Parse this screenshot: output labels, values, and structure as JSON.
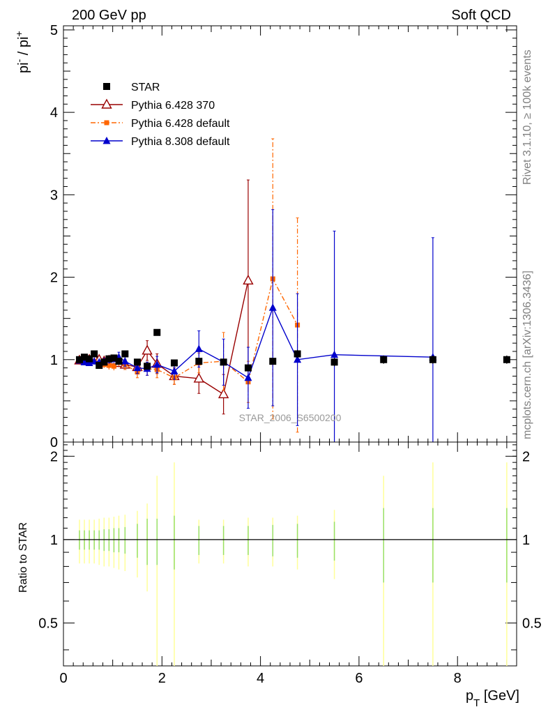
{
  "header": {
    "left": "200 GeV pp",
    "right": "Soft QCD"
  },
  "side_text": {
    "rivet": "Rivet 3.1.10, ≥ 100k events",
    "mcplots": "mcplots.cern.ch [arXiv:1306.3436]"
  },
  "watermark": "STAR_2006_S6500200",
  "chart_data": [
    {
      "type": "scatter",
      "panel": "main",
      "ylabel": "pi⁻ / pi⁺",
      "xlim": [
        0,
        9.2
      ],
      "ylim": [
        0,
        5.05
      ],
      "x_ticks": [
        0,
        2,
        4,
        6,
        8
      ],
      "y_ticks": [
        0,
        1,
        2,
        3,
        4,
        5
      ],
      "y_tick_labels": [
        "0",
        "1",
        "2",
        "3",
        "4",
        "5"
      ],
      "legend_position": "top-left",
      "series": [
        {
          "name": "STAR",
          "color": "#000000",
          "marker": "square",
          "line": "none",
          "x": [
            0.325,
            0.425,
            0.525,
            0.625,
            0.725,
            0.825,
            0.925,
            1.025,
            1.125,
            1.25,
            1.5,
            1.7,
            1.9,
            2.25,
            2.75,
            3.25,
            3.75,
            4.25,
            4.75,
            5.5,
            6.5,
            7.5,
            9.0
          ],
          "y": [
            1.0,
            1.03,
            1.01,
            1.07,
            0.93,
            0.97,
            1.01,
            1.02,
            0.98,
            1.07,
            0.97,
            0.92,
            1.33,
            0.96,
            0.98,
            0.97,
            0.9,
            0.98,
            1.07,
            0.97,
            1.0,
            1.0,
            1.0
          ],
          "err": [
            0.02,
            0.02,
            0.02,
            0.02,
            0.02,
            0.02,
            0.02,
            0.02,
            0.02,
            0.02,
            0.03,
            0.03,
            0.04,
            0.04,
            0.04,
            0.04,
            0.04,
            0.04,
            0.05,
            0.05,
            0.05,
            0.05,
            0.05
          ]
        },
        {
          "name": "Pythia 6.428 370",
          "color": "#990000",
          "marker": "open-triangle",
          "line": "solid",
          "x": [
            0.325,
            0.425,
            0.525,
            0.625,
            0.725,
            0.825,
            0.925,
            1.025,
            1.125,
            1.25,
            1.5,
            1.7,
            1.9,
            2.25,
            2.75,
            3.25,
            3.75
          ],
          "y": [
            0.99,
            0.99,
            1.0,
            1.02,
            1.0,
            0.98,
            0.99,
            0.99,
            0.96,
            0.94,
            0.91,
            1.11,
            0.95,
            0.8,
            0.77,
            0.58,
            1.96
          ],
          "err": [
            0.03,
            0.03,
            0.03,
            0.04,
            0.04,
            0.04,
            0.05,
            0.05,
            0.05,
            0.06,
            0.08,
            0.12,
            0.12,
            0.1,
            0.18,
            0.24,
            1.22
          ]
        },
        {
          "name": "Pythia 6.428 default",
          "color": "#ff6600",
          "marker": "square-small",
          "line": "dashdot",
          "x": [
            0.325,
            0.425,
            0.525,
            0.625,
            0.725,
            0.825,
            0.925,
            1.025,
            1.125,
            1.25,
            1.5,
            1.7,
            1.9,
            2.25,
            2.75,
            3.25,
            3.75,
            4.25,
            4.75
          ],
          "y": [
            0.99,
            0.98,
            0.96,
            0.98,
            0.96,
            0.94,
            0.93,
            0.92,
            0.97,
            0.94,
            0.85,
            0.89,
            0.88,
            0.78,
            0.96,
            0.98,
            0.73,
            1.98,
            1.42
          ],
          "err": [
            0.03,
            0.03,
            0.03,
            0.03,
            0.04,
            0.04,
            0.05,
            0.05,
            0.05,
            0.06,
            0.07,
            0.08,
            0.1,
            0.08,
            0.12,
            0.35,
            0.25,
            1.7,
            1.3
          ]
        },
        {
          "name": "Pythia 8.308 default",
          "color": "#0000cc",
          "marker": "filled-triangle",
          "line": "solid",
          "x": [
            0.325,
            0.425,
            0.525,
            0.625,
            0.725,
            0.825,
            0.925,
            1.025,
            1.125,
            1.25,
            1.5,
            1.7,
            1.9,
            2.25,
            2.75,
            3.25,
            3.75,
            4.25,
            4.75,
            5.5,
            7.5
          ],
          "y": [
            0.99,
            0.97,
            0.96,
            0.98,
            0.97,
            0.98,
            1.0,
            1.01,
            1.03,
            0.98,
            0.9,
            0.89,
            0.94,
            0.86,
            1.13,
            0.97,
            0.78,
            1.63,
            1.0,
            1.06,
            1.03
          ],
          "err": [
            0.03,
            0.03,
            0.03,
            0.04,
            0.04,
            0.04,
            0.05,
            0.05,
            0.06,
            0.06,
            0.07,
            0.08,
            0.1,
            0.1,
            0.22,
            0.28,
            0.37,
            1.19,
            0.8,
            1.5,
            1.45
          ]
        }
      ]
    },
    {
      "type": "scatter",
      "panel": "ratio",
      "ylabel": "Ratio to STAR",
      "xlabel": "p_T [GeV]",
      "xlim": [
        0,
        9.2
      ],
      "ylim": [
        0.35,
        2.25
      ],
      "x_ticks": [
        0,
        2,
        4,
        6,
        8
      ],
      "x_tick_labels": [
        "0",
        "2",
        "4",
        "6",
        "8"
      ],
      "y_ticks": [
        0.5,
        1,
        2
      ],
      "y_tick_labels": [
        "0.5",
        "1",
        "2"
      ],
      "reference_line": 1,
      "uncertainty_bands": {
        "x": [
          0.325,
          0.425,
          0.525,
          0.625,
          0.725,
          0.825,
          0.925,
          1.025,
          1.125,
          1.25,
          1.5,
          1.7,
          1.9,
          2.25,
          2.75,
          3.25,
          3.75,
          4.25,
          4.75,
          5.5,
          6.5,
          7.5,
          9.0
        ],
        "green_half_width": [
          0.08,
          0.08,
          0.08,
          0.08,
          0.08,
          0.09,
          0.09,
          0.1,
          0.1,
          0.11,
          0.14,
          0.19,
          0.19,
          0.22,
          0.12,
          0.12,
          0.12,
          0.13,
          0.14,
          0.16,
          0.3,
          0.3,
          0.3
        ],
        "yellow_half_width": [
          0.18,
          0.18,
          0.18,
          0.18,
          0.19,
          0.2,
          0.2,
          0.21,
          0.22,
          0.23,
          0.27,
          0.35,
          0.7,
          0.9,
          0.18,
          0.18,
          0.2,
          0.2,
          0.22,
          0.28,
          0.7,
          0.9,
          0.9
        ],
        "green_color": "#99e066",
        "yellow_color": "#ffff99"
      }
    }
  ]
}
